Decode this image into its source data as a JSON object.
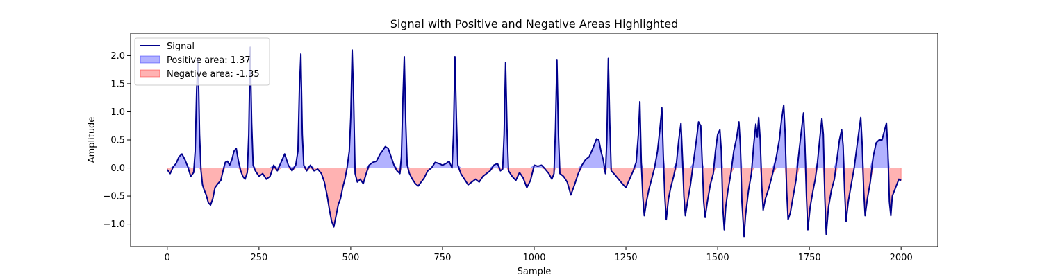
{
  "chart_data": {
    "type": "area",
    "title": "Signal with Positive and Negative Areas Highlighted",
    "xlabel": "Sample",
    "ylabel": "Amplitude",
    "xlim": [
      -100,
      2100
    ],
    "ylim": [
      -1.4,
      2.4
    ],
    "xticks": [
      0,
      250,
      500,
      750,
      1000,
      1250,
      1500,
      1750,
      2000
    ],
    "xtick_labels": [
      "0",
      "250",
      "500",
      "750",
      "1000",
      "1250",
      "1500",
      "1750",
      "2000"
    ],
    "yticks": [
      -1.0,
      -0.5,
      0.0,
      0.5,
      1.0,
      1.5,
      2.0
    ],
    "ytick_labels": [
      "−1.0",
      "−0.5",
      "0.0",
      "0.5",
      "1.0",
      "1.5",
      "2.0"
    ],
    "grid": false,
    "legend_position": "upper-left",
    "legend": [
      {
        "label": "Signal",
        "kind": "line",
        "color": "#00008b"
      },
      {
        "label": "Positive area: 1.37",
        "kind": "patch",
        "color": "#0000ff"
      },
      {
        "label": "Negative area: -1.35",
        "kind": "patch",
        "color": "#ff0000"
      }
    ],
    "colors": {
      "signal": "#00008b",
      "positive_fill": "#0000ff",
      "negative_fill": "#ff0000"
    },
    "series": [
      {
        "name": "Signal",
        "points": [
          [
            0,
            -0.03
          ],
          [
            8,
            -0.1
          ],
          [
            16,
            0.02
          ],
          [
            24,
            0.08
          ],
          [
            32,
            0.2
          ],
          [
            40,
            0.25
          ],
          [
            48,
            0.15
          ],
          [
            56,
            0.02
          ],
          [
            64,
            -0.15
          ],
          [
            72,
            -0.08
          ],
          [
            76,
            0.3
          ],
          [
            80,
            1.4
          ],
          [
            84,
            1.95
          ],
          [
            88,
            0.6
          ],
          [
            92,
            -0.05
          ],
          [
            96,
            -0.3
          ],
          [
            100,
            -0.38
          ],
          [
            106,
            -0.48
          ],
          [
            112,
            -0.62
          ],
          [
            118,
            -0.66
          ],
          [
            124,
            -0.55
          ],
          [
            130,
            -0.35
          ],
          [
            138,
            -0.28
          ],
          [
            146,
            -0.22
          ],
          [
            152,
            -0.05
          ],
          [
            158,
            0.1
          ],
          [
            164,
            0.12
          ],
          [
            170,
            0.05
          ],
          [
            176,
            0.15
          ],
          [
            182,
            0.3
          ],
          [
            188,
            0.35
          ],
          [
            194,
            0.12
          ],
          [
            200,
            -0.05
          ],
          [
            206,
            -0.15
          ],
          [
            212,
            -0.2
          ],
          [
            218,
            -0.08
          ],
          [
            222,
            0.6
          ],
          [
            226,
            2.15
          ],
          [
            230,
            0.8
          ],
          [
            234,
            0.05
          ],
          [
            240,
            -0.05
          ],
          [
            250,
            -0.15
          ],
          [
            260,
            -0.1
          ],
          [
            270,
            -0.2
          ],
          [
            280,
            -0.15
          ],
          [
            290,
            0.05
          ],
          [
            300,
            -0.05
          ],
          [
            310,
            0.1
          ],
          [
            320,
            0.25
          ],
          [
            330,
            0.05
          ],
          [
            340,
            -0.05
          ],
          [
            350,
            0.05
          ],
          [
            356,
            0.3
          ],
          [
            360,
            1.4
          ],
          [
            364,
            2.03
          ],
          [
            368,
            0.6
          ],
          [
            372,
            0.05
          ],
          [
            380,
            -0.05
          ],
          [
            390,
            0.05
          ],
          [
            400,
            -0.05
          ],
          [
            410,
            -0.02
          ],
          [
            420,
            -0.1
          ],
          [
            428,
            -0.25
          ],
          [
            436,
            -0.5
          ],
          [
            442,
            -0.75
          ],
          [
            448,
            -0.95
          ],
          [
            454,
            -1.05
          ],
          [
            460,
            -0.85
          ],
          [
            466,
            -0.65
          ],
          [
            472,
            -0.55
          ],
          [
            478,
            -0.35
          ],
          [
            484,
            -0.2
          ],
          [
            490,
            0.0
          ],
          [
            496,
            0.3
          ],
          [
            500,
            0.9
          ],
          [
            504,
            2.1
          ],
          [
            508,
            1.2
          ],
          [
            512,
            -0.1
          ],
          [
            518,
            -0.25
          ],
          [
            526,
            -0.2
          ],
          [
            534,
            -0.28
          ],
          [
            542,
            -0.1
          ],
          [
            550,
            0.05
          ],
          [
            560,
            0.1
          ],
          [
            570,
            0.12
          ],
          [
            580,
            0.25
          ],
          [
            586,
            0.3
          ],
          [
            594,
            0.38
          ],
          [
            602,
            0.35
          ],
          [
            610,
            0.2
          ],
          [
            618,
            0.05
          ],
          [
            626,
            -0.05
          ],
          [
            634,
            -0.1
          ],
          [
            638,
            0.2
          ],
          [
            642,
            1.2
          ],
          [
            646,
            1.98
          ],
          [
            650,
            0.8
          ],
          [
            654,
            0.05
          ],
          [
            660,
            -0.1
          ],
          [
            668,
            -0.2
          ],
          [
            676,
            -0.28
          ],
          [
            684,
            -0.32
          ],
          [
            692,
            -0.25
          ],
          [
            700,
            -0.18
          ],
          [
            710,
            -0.05
          ],
          [
            720,
            0.0
          ],
          [
            730,
            0.1
          ],
          [
            740,
            0.08
          ],
          [
            750,
            0.05
          ],
          [
            760,
            0.08
          ],
          [
            768,
            0.12
          ],
          [
            776,
            0.0
          ],
          [
            780,
            0.6
          ],
          [
            784,
            1.98
          ],
          [
            788,
            0.9
          ],
          [
            792,
            0.05
          ],
          [
            800,
            -0.1
          ],
          [
            810,
            -0.2
          ],
          [
            820,
            -0.3
          ],
          [
            830,
            -0.25
          ],
          [
            840,
            -0.2
          ],
          [
            850,
            -0.25
          ],
          [
            860,
            -0.15
          ],
          [
            870,
            -0.1
          ],
          [
            880,
            -0.05
          ],
          [
            890,
            0.05
          ],
          [
            900,
            0.08
          ],
          [
            908,
            -0.05
          ],
          [
            914,
            -0.02
          ],
          [
            918,
            0.6
          ],
          [
            922,
            1.88
          ],
          [
            926,
            0.7
          ],
          [
            930,
            -0.05
          ],
          [
            940,
            -0.15
          ],
          [
            950,
            -0.22
          ],
          [
            960,
            -0.08
          ],
          [
            970,
            -0.18
          ],
          [
            980,
            -0.35
          ],
          [
            990,
            -0.22
          ],
          [
            1000,
            0.05
          ],
          [
            1010,
            0.03
          ],
          [
            1020,
            0.05
          ],
          [
            1030,
            -0.02
          ],
          [
            1040,
            -0.1
          ],
          [
            1048,
            -0.2
          ],
          [
            1054,
            -0.1
          ],
          [
            1058,
            0.7
          ],
          [
            1062,
            1.93
          ],
          [
            1066,
            0.6
          ],
          [
            1070,
            -0.1
          ],
          [
            1080,
            -0.15
          ],
          [
            1090,
            -0.25
          ],
          [
            1100,
            -0.48
          ],
          [
            1110,
            -0.3
          ],
          [
            1120,
            -0.1
          ],
          [
            1130,
            0.05
          ],
          [
            1140,
            0.15
          ],
          [
            1150,
            0.2
          ],
          [
            1160,
            0.35
          ],
          [
            1170,
            0.52
          ],
          [
            1176,
            0.5
          ],
          [
            1182,
            0.3
          ],
          [
            1188,
            0.15
          ],
          [
            1194,
            -0.1
          ],
          [
            1198,
            0.5
          ],
          [
            1202,
            1.95
          ],
          [
            1206,
            0.8
          ],
          [
            1210,
            -0.05
          ],
          [
            1220,
            -0.12
          ],
          [
            1230,
            -0.2
          ],
          [
            1240,
            -0.28
          ],
          [
            1250,
            -0.35
          ],
          [
            1260,
            -0.2
          ],
          [
            1270,
            -0.05
          ],
          [
            1278,
            0.1
          ],
          [
            1284,
            0.6
          ],
          [
            1288,
            1.18
          ],
          [
            1292,
            0.1
          ],
          [
            1296,
            -0.5
          ],
          [
            1300,
            -0.85
          ],
          [
            1306,
            -0.6
          ],
          [
            1312,
            -0.4
          ],
          [
            1320,
            -0.2
          ],
          [
            1328,
            0.0
          ],
          [
            1336,
            0.3
          ],
          [
            1342,
            0.65
          ],
          [
            1348,
            1.07
          ],
          [
            1352,
            0.2
          ],
          [
            1356,
            -0.5
          ],
          [
            1360,
            -0.92
          ],
          [
            1366,
            -0.55
          ],
          [
            1372,
            -0.35
          ],
          [
            1380,
            -0.15
          ],
          [
            1388,
            0.1
          ],
          [
            1394,
            0.5
          ],
          [
            1400,
            0.8
          ],
          [
            1404,
            0.2
          ],
          [
            1408,
            -0.5
          ],
          [
            1412,
            -0.85
          ],
          [
            1418,
            -0.6
          ],
          [
            1426,
            -0.3
          ],
          [
            1434,
            0.1
          ],
          [
            1442,
            0.5
          ],
          [
            1448,
            0.82
          ],
          [
            1454,
            0.75
          ],
          [
            1458,
            0.1
          ],
          [
            1462,
            -0.6
          ],
          [
            1466,
            -0.88
          ],
          [
            1472,
            -0.6
          ],
          [
            1480,
            -0.3
          ],
          [
            1488,
            -0.1
          ],
          [
            1494,
            0.3
          ],
          [
            1500,
            0.6
          ],
          [
            1506,
            0.68
          ],
          [
            1510,
            0.3
          ],
          [
            1514,
            -0.7
          ],
          [
            1518,
            -1.1
          ],
          [
            1522,
            -0.7
          ],
          [
            1528,
            -0.4
          ],
          [
            1536,
            -0.1
          ],
          [
            1544,
            0.3
          ],
          [
            1552,
            0.55
          ],
          [
            1558,
            0.82
          ],
          [
            1562,
            0.4
          ],
          [
            1566,
            -0.6
          ],
          [
            1572,
            -1.22
          ],
          [
            1576,
            -0.85
          ],
          [
            1584,
            -0.4
          ],
          [
            1592,
            -0.1
          ],
          [
            1598,
            0.4
          ],
          [
            1604,
            0.78
          ],
          [
            1608,
            0.55
          ],
          [
            1612,
            0.9
          ],
          [
            1616,
            0.5
          ],
          [
            1620,
            -0.3
          ],
          [
            1624,
            -0.75
          ],
          [
            1630,
            -0.55
          ],
          [
            1640,
            -0.35
          ],
          [
            1650,
            -0.1
          ],
          [
            1660,
            0.2
          ],
          [
            1668,
            0.5
          ],
          [
            1674,
            0.85
          ],
          [
            1680,
            1.12
          ],
          [
            1684,
            0.6
          ],
          [
            1688,
            -0.4
          ],
          [
            1692,
            -0.92
          ],
          [
            1698,
            -0.8
          ],
          [
            1706,
            -0.5
          ],
          [
            1714,
            -0.2
          ],
          [
            1722,
            0.3
          ],
          [
            1728,
            0.65
          ],
          [
            1734,
            0.98
          ],
          [
            1738,
            0.4
          ],
          [
            1742,
            -0.5
          ],
          [
            1746,
            -1.1
          ],
          [
            1752,
            -0.7
          ],
          [
            1760,
            -0.4
          ],
          [
            1766,
            -0.2
          ],
          [
            1772,
            0.1
          ],
          [
            1778,
            0.5
          ],
          [
            1784,
            0.88
          ],
          [
            1788,
            0.6
          ],
          [
            1792,
            -0.5
          ],
          [
            1796,
            -1.18
          ],
          [
            1802,
            -0.7
          ],
          [
            1810,
            -0.4
          ],
          [
            1818,
            -0.2
          ],
          [
            1826,
            0.2
          ],
          [
            1832,
            0.5
          ],
          [
            1838,
            0.68
          ],
          [
            1842,
            0.4
          ],
          [
            1846,
            -0.4
          ],
          [
            1850,
            -0.95
          ],
          [
            1856,
            -0.6
          ],
          [
            1864,
            -0.3
          ],
          [
            1872,
            0.0
          ],
          [
            1878,
            0.3
          ],
          [
            1884,
            0.6
          ],
          [
            1890,
            0.9
          ],
          [
            1894,
            0.4
          ],
          [
            1898,
            -0.4
          ],
          [
            1902,
            -0.85
          ],
          [
            1908,
            -0.55
          ],
          [
            1916,
            -0.25
          ],
          [
            1924,
            0.2
          ],
          [
            1932,
            0.45
          ],
          [
            1940,
            0.5
          ],
          [
            1948,
            0.5
          ],
          [
            1954,
            0.65
          ],
          [
            1960,
            0.8
          ],
          [
            1964,
            0.3
          ],
          [
            1968,
            -0.6
          ],
          [
            1972,
            -0.85
          ],
          [
            1976,
            -0.5
          ],
          [
            1982,
            -0.4
          ],
          [
            1988,
            -0.3
          ],
          [
            1994,
            -0.2
          ],
          [
            2000,
            -0.22
          ]
        ]
      }
    ]
  }
}
